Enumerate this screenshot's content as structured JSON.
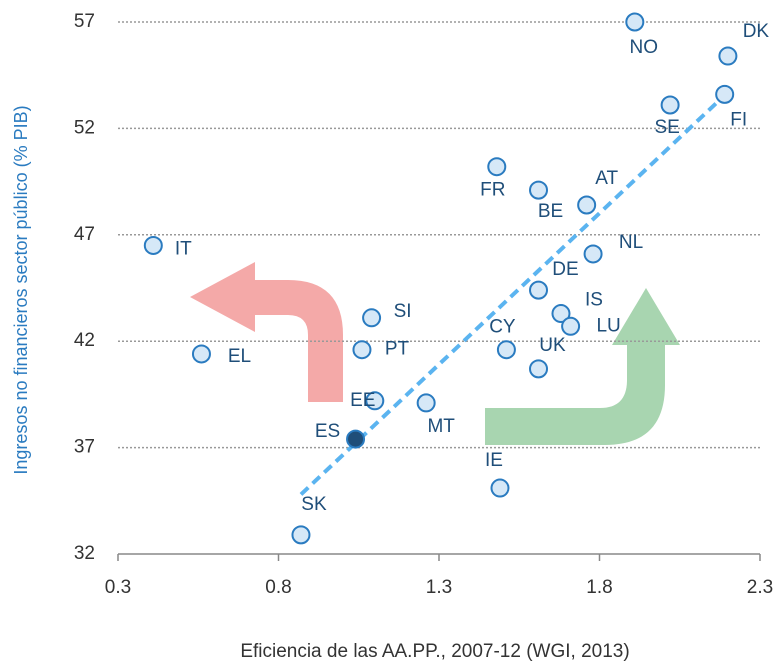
{
  "chart_data": {
    "type": "scatter",
    "x_label": "Eficiencia de las AA.PP., 2007-12 (WGI, 2013)",
    "y_label": "Ingresos no financieros sector público (% PIB)",
    "xlim": [
      0.3,
      2.3
    ],
    "xticks": [
      0.3,
      0.8,
      1.3,
      1.8,
      2.3
    ],
    "ylim": [
      32,
      57
    ],
    "yticks": [
      32,
      37,
      42,
      47,
      52,
      57
    ],
    "grid": true,
    "labels": [
      "NO",
      "DK",
      "SE",
      "FI",
      "FR",
      "BE",
      "AT",
      "NL",
      "IT",
      "DE",
      "IS",
      "LU",
      "SI",
      "CY",
      "UK",
      "EL",
      "PT",
      "EE",
      "MT",
      "ES",
      "IE",
      "SK"
    ],
    "x": [
      1.91,
      2.2,
      2.02,
      2.19,
      1.48,
      1.61,
      1.76,
      1.78,
      0.41,
      1.61,
      1.68,
      1.71,
      1.09,
      1.51,
      1.61,
      0.56,
      1.06,
      1.1,
      1.26,
      1.04,
      1.49,
      0.87
    ],
    "y": [
      57.0,
      55.4,
      53.1,
      53.6,
      50.2,
      49.1,
      48.4,
      46.1,
      46.5,
      44.4,
      43.3,
      42.7,
      43.1,
      41.6,
      40.7,
      41.4,
      41.6,
      39.2,
      39.1,
      37.4,
      35.1,
      32.9
    ],
    "colors": [
      "#d6e8f7",
      "#d6e8f7",
      "#d6e8f7",
      "#d6e8f7",
      "#d6e8f7",
      "#d6e8f7",
      "#d6e8f7",
      "#d6e8f7",
      "#d6e8f7",
      "#d6e8f7",
      "#d6e8f7",
      "#d6e8f7",
      "#d6e8f7",
      "#d6e8f7",
      "#d6e8f7",
      "#d6e8f7",
      "#d6e8f7",
      "#d6e8f7",
      "#d6e8f7",
      "#1f4e79",
      "#d6e8f7",
      "#d6e8f7"
    ],
    "edge_color": "#2a7bc0",
    "trendline": {
      "x": [
        0.87,
        2.2
      ],
      "y": [
        34.8,
        53.7
      ],
      "color": "#5bb4f0"
    }
  }
}
